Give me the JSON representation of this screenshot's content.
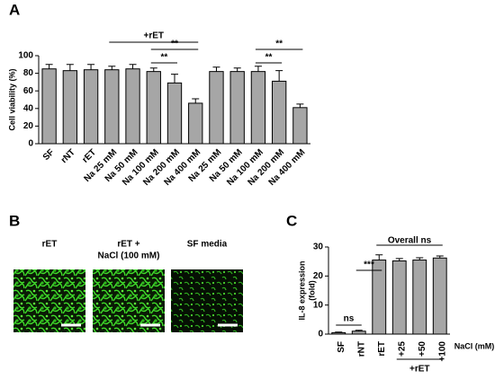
{
  "chart_data": [
    {
      "type": "bar",
      "panel_label": "A",
      "y_label": [
        "Cell viability (%)"
      ],
      "categories": [
        "SF",
        "rNT",
        "rET",
        "Na 25 mM",
        "Na 50 mM",
        "Na 100 mM",
        "Na 200 mM",
        "Na 400 mM",
        "Na 25 mM",
        "Na 50 mM",
        "Na 100 mM",
        "Na 200 mM",
        "Na 400 mM"
      ],
      "values": [
        85,
        83,
        84,
        84,
        85,
        82,
        69,
        46,
        82,
        82,
        82,
        71,
        41
      ],
      "errors": [
        5,
        7,
        6,
        4,
        5,
        4,
        10,
        5,
        5,
        4,
        6,
        12,
        4
      ],
      "color": "#a6a6a6",
      "ylim": [
        0,
        100
      ],
      "yticks": [
        0,
        20,
        40,
        60,
        80,
        100
      ],
      "grid": false,
      "annotations": [
        "+rET",
        "**",
        "**",
        "**",
        "**"
      ]
    },
    {
      "type": "bar",
      "panel_label": "C",
      "y_label": [
        "IL-8 expression",
        "(fold)"
      ],
      "categories": [
        "SF",
        "rNT",
        "rET",
        "+25",
        "+50",
        "+100"
      ],
      "values": [
        0.5,
        1,
        25.5,
        25.2,
        25.5,
        26.2
      ],
      "errors": [
        0.2,
        0.3,
        1.8,
        0.8,
        0.8,
        0.7
      ],
      "color": "#a6a6a6",
      "ylim": [
        0,
        30
      ],
      "yticks": [
        0,
        10,
        20,
        30
      ],
      "grid": false,
      "annotations": [
        "ns",
        "***",
        "Overall ns",
        "NaCl (mM)",
        "+rET"
      ]
    }
  ],
  "images": {
    "panel_label": "B",
    "captions": [
      [
        "rET"
      ],
      [
        "rET +",
        "NaCl (100 mM)"
      ],
      [
        "SF media"
      ]
    ]
  }
}
